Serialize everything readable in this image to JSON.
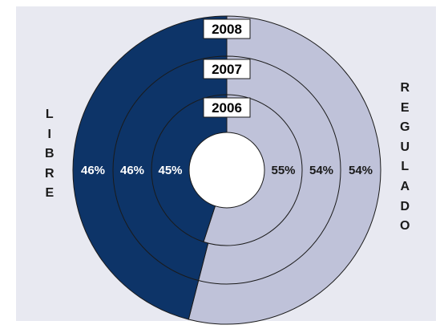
{
  "chart_data": {
    "type": "pie",
    "subtype": "concentric-donut",
    "categories": [
      "LIBRE",
      "REGULADO"
    ],
    "series": [
      {
        "name": "2008",
        "values": [
          46,
          54
        ],
        "labels": [
          "46%",
          "54%"
        ]
      },
      {
        "name": "2007",
        "values": [
          46,
          54
        ],
        "labels": [
          "46%",
          "54%"
        ]
      },
      {
        "name": "2006",
        "values": [
          45,
          55
        ],
        "labels": [
          "45%",
          "55%"
        ]
      }
    ],
    "colors": {
      "LIBRE": "#0d3468",
      "REGULADO": "#bfc2d9",
      "background": "#e8e9f1"
    }
  }
}
